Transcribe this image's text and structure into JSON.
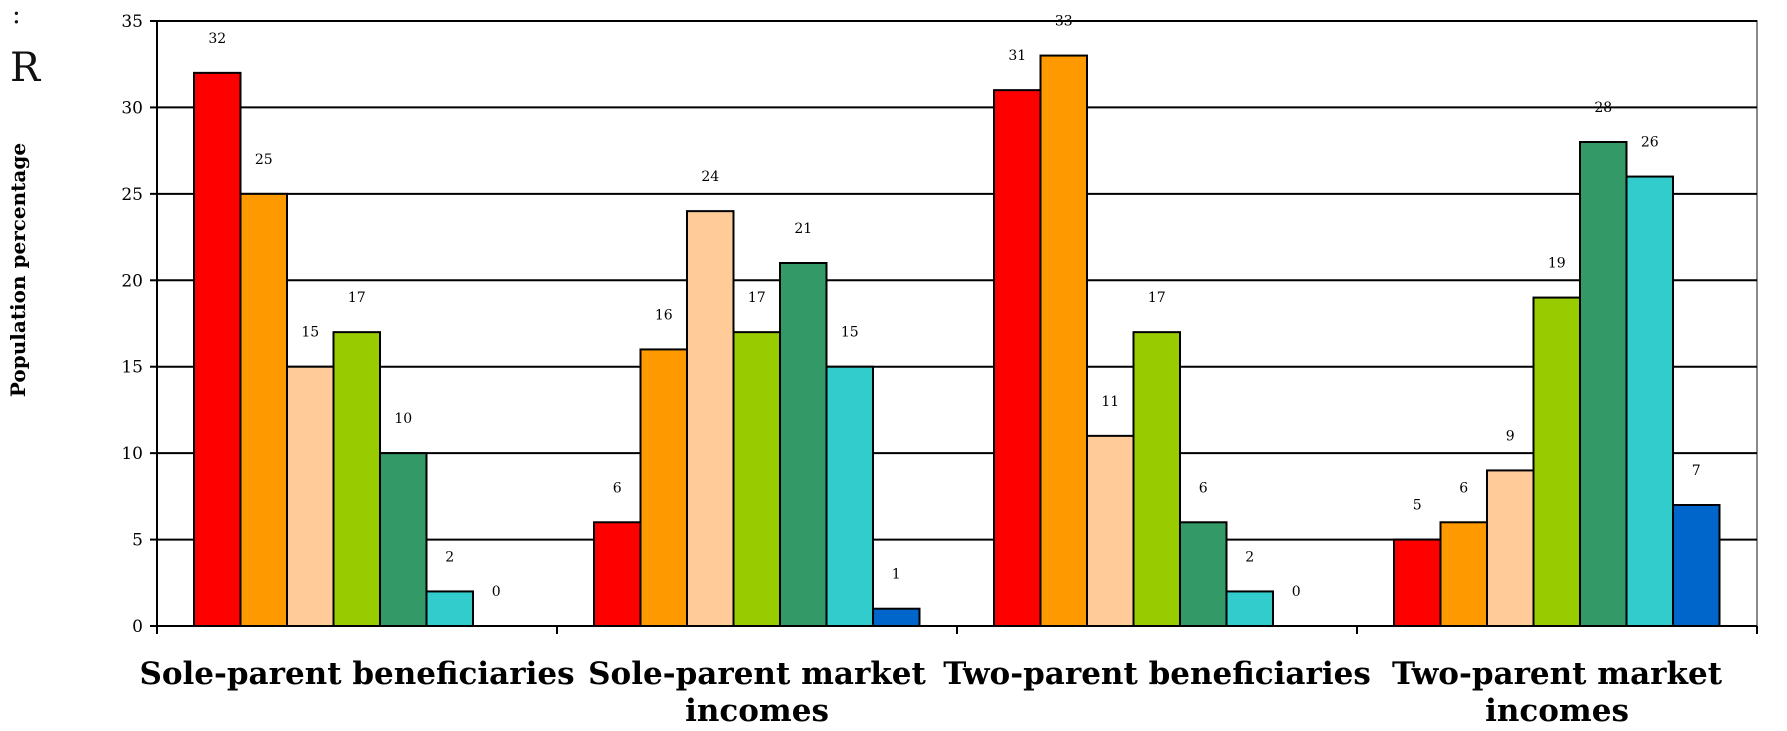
{
  "side": {
    "mark": ":",
    "letter": "R"
  },
  "chart_data": {
    "type": "bar",
    "ylabel": "Population percentage",
    "ylim": [
      0,
      35
    ],
    "yticks": [
      0,
      5,
      10,
      15,
      20,
      25,
      30,
      35
    ],
    "grid": true,
    "categories": [
      [
        "Sole-parent beneficiaries"
      ],
      [
        "Sole-parent market",
        "incomes"
      ],
      [
        "Two-parent beneficiaries"
      ],
      [
        "Two-parent market",
        "incomes"
      ]
    ],
    "series": [
      {
        "color": "#ff0000",
        "values": [
          32,
          6,
          31,
          5
        ]
      },
      {
        "color": "#ff9900",
        "values": [
          25,
          16,
          33,
          6
        ]
      },
      {
        "color": "#ffcc99",
        "values": [
          15,
          24,
          11,
          9
        ]
      },
      {
        "color": "#99cc00",
        "values": [
          17,
          17,
          17,
          19
        ]
      },
      {
        "color": "#339966",
        "values": [
          10,
          21,
          6,
          28
        ]
      },
      {
        "color": "#33cccc",
        "values": [
          2,
          15,
          2,
          26
        ]
      },
      {
        "color": "#0066cc",
        "values": [
          0,
          1,
          0,
          7
        ]
      }
    ]
  }
}
